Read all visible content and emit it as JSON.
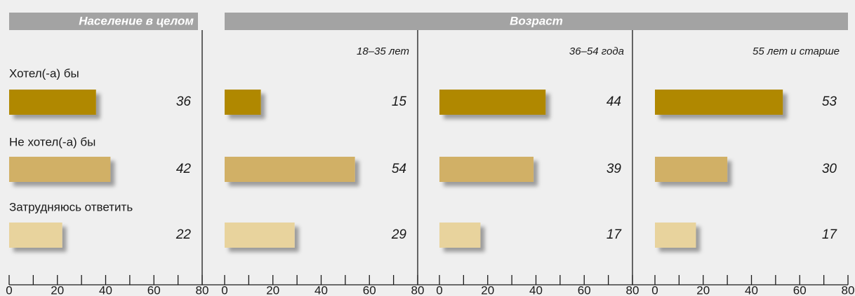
{
  "header": "Возраст",
  "chart_data": [
    {
      "type": "bar",
      "orientation": "horizontal",
      "title": "Население в целом",
      "categories": [
        "Хотел(-а) бы",
        "Не хотел(-а) бы",
        "Затрудняюсь ответить"
      ],
      "values": [
        36,
        42,
        22
      ],
      "colors": [
        "#b08806",
        "#d1b066",
        "#e8d39d"
      ],
      "xlim": [
        0,
        80
      ],
      "xticks": [
        0,
        20,
        40,
        60,
        80
      ],
      "xminor_ticks": [
        10,
        30,
        50,
        70
      ]
    },
    {
      "type": "bar",
      "orientation": "horizontal",
      "subtitle": "18–35 лет",
      "categories": [
        null,
        null,
        null
      ],
      "values": [
        15,
        54,
        29
      ],
      "colors": [
        "#b08806",
        "#d1b066",
        "#e8d39d"
      ],
      "xlim": [
        0,
        80
      ],
      "xticks": [
        0,
        20,
        40,
        60,
        80
      ],
      "xminor_ticks": [
        10,
        30,
        50,
        70
      ]
    },
    {
      "type": "bar",
      "orientation": "horizontal",
      "subtitle": "36–54 года",
      "categories": [
        null,
        null,
        null
      ],
      "values": [
        44,
        39,
        17
      ],
      "colors": [
        "#b08806",
        "#d1b066",
        "#e8d39d"
      ],
      "xlim": [
        0,
        80
      ],
      "xticks": [
        0,
        20,
        40,
        60,
        80
      ],
      "xminor_ticks": [
        10,
        30,
        50,
        70
      ]
    },
    {
      "type": "bar",
      "orientation": "horizontal",
      "subtitle": "55 лет и старше",
      "categories": [
        null,
        null,
        null
      ],
      "values": [
        53,
        30,
        17
      ],
      "colors": [
        "#b08806",
        "#d1b066",
        "#e8d39d"
      ],
      "xlim": [
        0,
        80
      ],
      "xticks": [
        0,
        20,
        40,
        60,
        80
      ],
      "xminor_ticks": [
        10,
        30,
        50,
        70
      ]
    }
  ]
}
